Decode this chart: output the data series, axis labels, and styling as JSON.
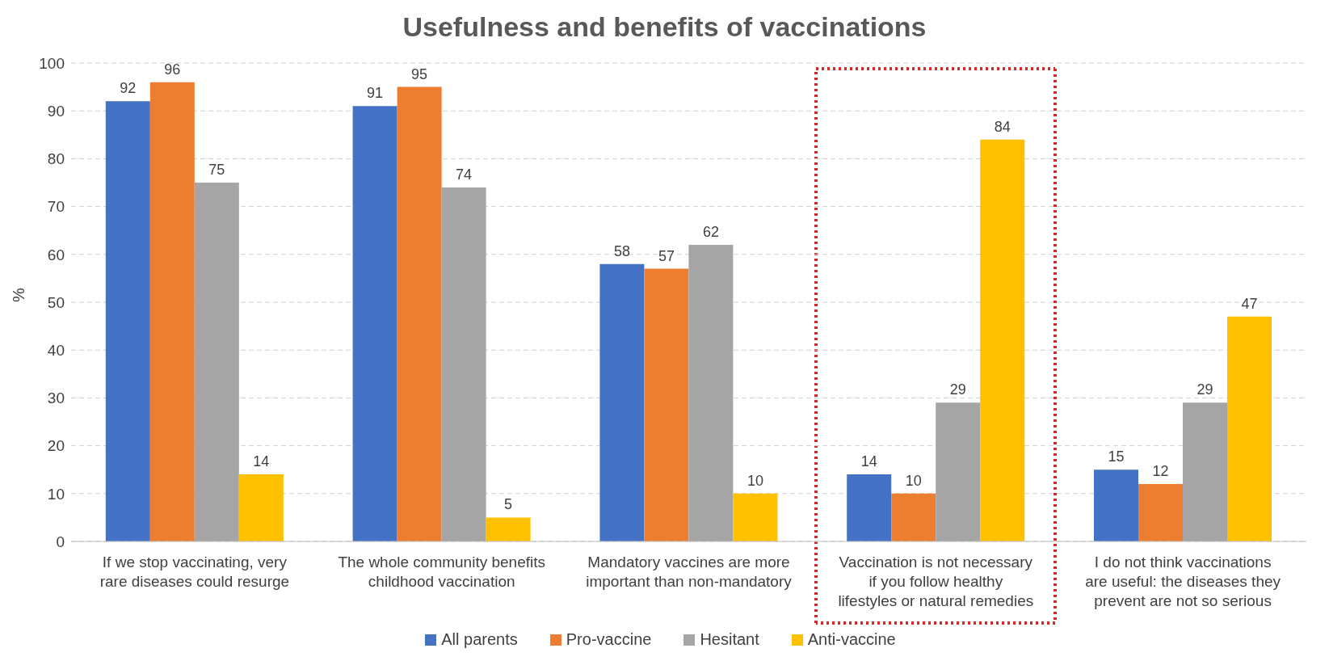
{
  "chart_data": {
    "type": "bar",
    "title": "Usefulness and benefits of vaccinations",
    "ylabel": "%",
    "categories": [
      "If we stop vaccinating, very rare diseases could resurge",
      "The whole community benefits childhood vaccination",
      "Mandatory vaccines are more important than non-mandatory",
      "Vaccination is not necessary if you follow healthy lifestyles or natural remedies",
      "I do not think vaccinations are useful: the diseases they prevent are not so serious"
    ],
    "series": [
      {
        "name": "All parents",
        "color": "#4472c4",
        "values": [
          92,
          91,
          58,
          14,
          15
        ]
      },
      {
        "name": "Pro-vaccine",
        "color": "#ed7d31",
        "values": [
          96,
          95,
          57,
          10,
          12
        ]
      },
      {
        "name": "Hesitant",
        "color": "#a5a5a5",
        "values": [
          75,
          74,
          62,
          29,
          29
        ]
      },
      {
        "name": "Anti-vaccine",
        "color": "#ffc000",
        "values": [
          14,
          5,
          10,
          84,
          47
        ]
      }
    ],
    "ylim": [
      0,
      100
    ],
    "yticks": [
      0,
      10,
      20,
      30,
      40,
      50,
      60,
      70,
      80,
      90,
      100
    ],
    "grid": "y",
    "legend": "bottom",
    "data_labels": true
  }
}
